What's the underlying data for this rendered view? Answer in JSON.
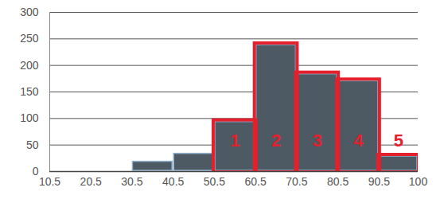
{
  "chart_data": {
    "type": "histogram",
    "bins": [
      10.5,
      20.5,
      30.5,
      40.5,
      50.5,
      60.5,
      70.5,
      80.5,
      90.5,
      100
    ],
    "values": [
      1,
      3,
      20,
      35,
      95,
      240,
      185,
      172,
      30
    ],
    "annotations": [
      null,
      null,
      null,
      null,
      "1",
      "2",
      "3",
      "4",
      "5"
    ],
    "color": "#4d5a63",
    "xlim": [
      10.5,
      100
    ],
    "xticks": [
      10.5,
      20.5,
      30.5,
      40.5,
      50.5,
      60.5,
      70.5,
      80.5,
      90.5,
      100
    ],
    "ylim": [
      0,
      300
    ],
    "yticks": [
      0,
      50,
      100,
      150,
      200,
      250,
      300
    ],
    "grid": true
  }
}
